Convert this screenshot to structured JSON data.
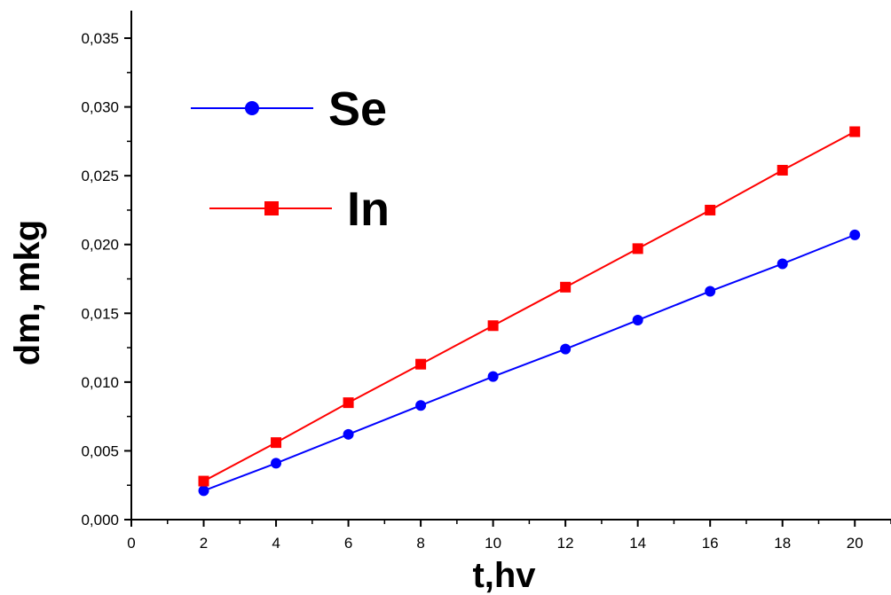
{
  "chart_data": {
    "type": "line",
    "title": "",
    "xlabel": "t,hv",
    "ylabel": "dm, mkg",
    "xlim": [
      0,
      21
    ],
    "ylim": [
      0,
      0.037
    ],
    "x_ticks": [
      "0",
      "2",
      "4",
      "6",
      "8",
      "10",
      "12",
      "14",
      "16",
      "18",
      "20"
    ],
    "y_ticks": [
      "0,000",
      "0,005",
      "0,010",
      "0,015",
      "0,020",
      "0,025",
      "0,030",
      "0,035"
    ],
    "legend_position": "top-left",
    "grid": false,
    "x": [
      2,
      4,
      6,
      8,
      10,
      12,
      14,
      16,
      18,
      20
    ],
    "series": [
      {
        "name": "Se",
        "color": "#0000ff",
        "marker": "circle",
        "values": [
          0.0021,
          0.0041,
          0.0062,
          0.0083,
          0.0104,
          0.0124,
          0.0145,
          0.0166,
          0.0186,
          0.0207
        ]
      },
      {
        "name": "In",
        "color": "#ff0000",
        "marker": "square",
        "values": [
          0.0028,
          0.0056,
          0.0085,
          0.0113,
          0.0141,
          0.0169,
          0.0197,
          0.0225,
          0.0254,
          0.0282
        ]
      }
    ]
  }
}
